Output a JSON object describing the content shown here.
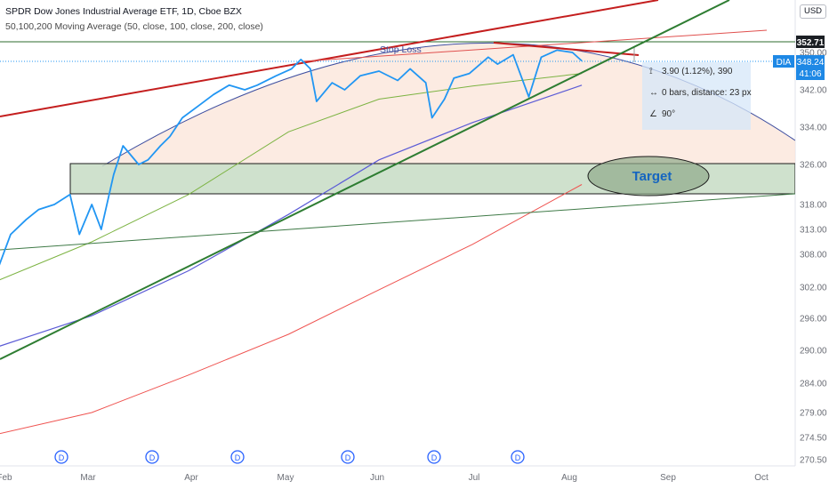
{
  "header": {
    "title": "SPDR Dow Jones Industrial Average ETF, 1D, Cboe BZX",
    "indicator": "50,100,200 Moving Average (50, close, 100, close, 200, close)"
  },
  "currency": "USD",
  "annotations": {
    "stop_loss": "Stop Loss",
    "target": "Target"
  },
  "measure_box": {
    "row1": "3.90 (1.12%), 390",
    "row2": "0 bars, distance: 23 px",
    "row3": "90°"
  },
  "price_badges": {
    "stop_level": "352.71",
    "ticker": "DIA",
    "last_price": "348.24",
    "countdown": "41:06"
  },
  "dividend_marker": "D",
  "colors": {
    "price": "#2196f3",
    "ma50": "#7cb342",
    "ma100": "#5b5bd6",
    "ma200": "#ef5350",
    "wedge_upper": "#c41e1e",
    "trend_green": "#2e7d32",
    "target_zone": "#c7dcc4",
    "arc_fill": "#fbe4d8",
    "stop_badge": "#1b1f24",
    "ticker_badge": "#1e88e5"
  },
  "chart_data": {
    "type": "line",
    "title": "SPDR Dow Jones Industrial Average ETF, 1D, Cboe BZX",
    "xlabel": "",
    "ylabel": "",
    "x_ticks": [
      "Feb",
      "Mar",
      "Apr",
      "May",
      "Jun",
      "Jul",
      "Aug",
      "Sep",
      "Oct"
    ],
    "y_ticks": [
      350.0,
      342.0,
      334.0,
      326.0,
      318.0,
      313.0,
      308.0,
      302.0,
      296.0,
      290.0,
      284.0,
      279.0,
      274.5,
      270.5
    ],
    "ylim": [
      268,
      358
    ],
    "grid": false,
    "series": [
      {
        "name": "DIA",
        "x": [
          "2021-01-29",
          "2021-02-03",
          "2021-02-08",
          "2021-02-12",
          "2021-02-17",
          "2021-02-22",
          "2021-02-25",
          "2021-03-01",
          "2021-03-04",
          "2021-03-08",
          "2021-03-11",
          "2021-03-16",
          "2021-03-19",
          "2021-03-23",
          "2021-03-26",
          "2021-03-30",
          "2021-04-05",
          "2021-04-09",
          "2021-04-14",
          "2021-04-19",
          "2021-04-23",
          "2021-04-29",
          "2021-05-04",
          "2021-05-07",
          "2021-05-10",
          "2021-05-12",
          "2021-05-17",
          "2021-05-21",
          "2021-05-26",
          "2021-06-01",
          "2021-06-07",
          "2021-06-11",
          "2021-06-16",
          "2021-06-18",
          "2021-06-22",
          "2021-06-25",
          "2021-06-30",
          "2021-07-06",
          "2021-07-09",
          "2021-07-14",
          "2021-07-19",
          "2021-07-23",
          "2021-07-28",
          "2021-08-02",
          "2021-08-05"
        ],
        "values": [
          304.0,
          312.0,
          315.0,
          317.0,
          318.0,
          320.0,
          312.0,
          318.0,
          313.0,
          324.0,
          330.0,
          326.0,
          327.0,
          330.0,
          332.0,
          336.0,
          339.0,
          341.0,
          343.0,
          342.0,
          343.0,
          345.0,
          346.5,
          348.5,
          346.5,
          339.5,
          343.5,
          342.0,
          345.0,
          346.0,
          344.0,
          346.5,
          343.5,
          336.0,
          340.0,
          344.5,
          345.5,
          349.0,
          347.5,
          349.5,
          340.5,
          349.0,
          350.5,
          350.0,
          348.2
        ]
      },
      {
        "name": "MA 50",
        "x": [
          "2021-01-29",
          "2021-03-01",
          "2021-04-01",
          "2021-05-03",
          "2021-06-01",
          "2021-07-01",
          "2021-08-05"
        ],
        "values": [
          303.0,
          310.5,
          320.0,
          333.0,
          340.0,
          342.8,
          345.5
        ]
      },
      {
        "name": "MA 100",
        "x": [
          "2021-01-29",
          "2021-03-01",
          "2021-04-01",
          "2021-05-03",
          "2021-06-01",
          "2021-07-01",
          "2021-08-05"
        ],
        "values": [
          290.5,
          296.5,
          305.0,
          316.0,
          327.0,
          335.0,
          343.0
        ]
      },
      {
        "name": "MA 200",
        "x": [
          "2021-01-29",
          "2021-03-01",
          "2021-04-01",
          "2021-05-03",
          "2021-06-01",
          "2021-07-01",
          "2021-08-05"
        ],
        "values": [
          275.0,
          279.0,
          285.5,
          293.0,
          301.5,
          310.0,
          322.0
        ]
      }
    ],
    "levels": {
      "stop": 352.71,
      "last": 348.24,
      "target_zone": [
        320.0,
        326.0
      ]
    }
  }
}
